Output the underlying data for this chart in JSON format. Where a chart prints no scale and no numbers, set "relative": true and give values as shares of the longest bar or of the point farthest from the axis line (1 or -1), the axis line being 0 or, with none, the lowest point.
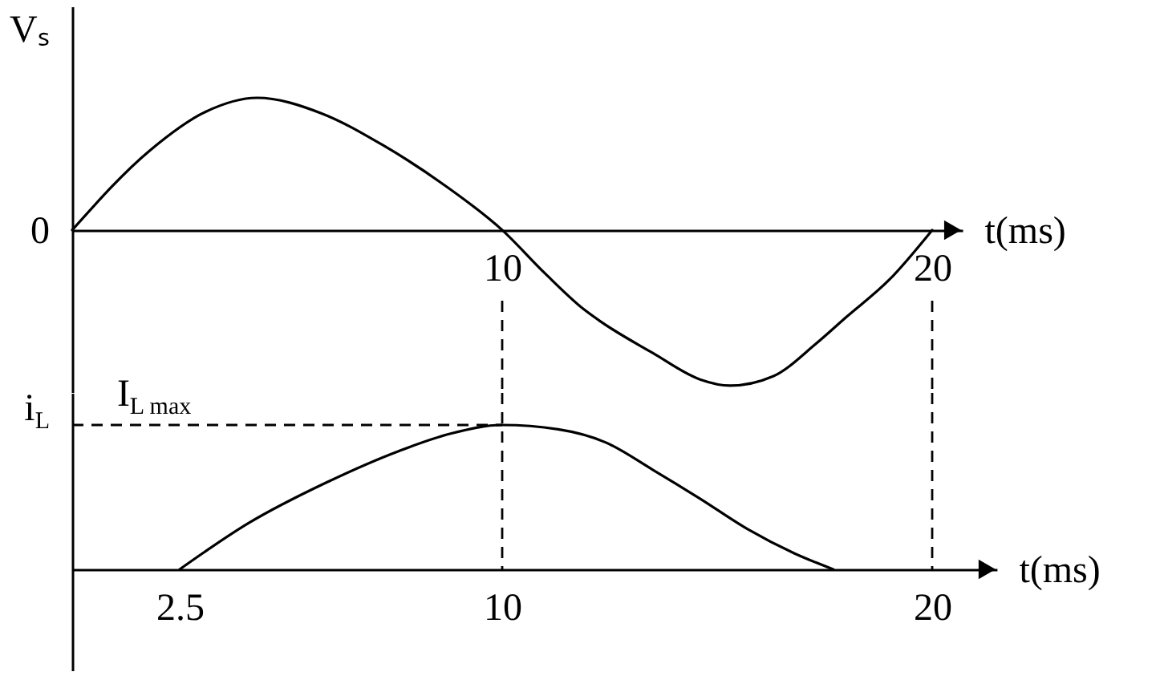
{
  "chart_data": [
    {
      "type": "line",
      "xlabel": "t(ms)",
      "ylabel": "Vₛ",
      "relative": true,
      "xlim": [
        0,
        20.7
      ],
      "xticks": [
        10,
        20
      ],
      "x": [
        0,
        1.8,
        3.1,
        4.3,
        5.8,
        7.2,
        8.6,
        10,
        11,
        11.9,
        12.3,
        13.5,
        14.6,
        15.3,
        16.3,
        17.3,
        18,
        19,
        20
      ],
      "series": [
        {
          "color": "#000000",
          "values": [
            0,
            0.51,
            0.76,
            0.85,
            0.75,
            0.55,
            0.3,
            0,
            -0.28,
            -0.51,
            -0.59,
            -0.79,
            -0.96,
            -1,
            -0.94,
            -0.73,
            -0.56,
            -0.32,
            0
          ]
        }
      ],
      "ref_lines": [
        {
          "axis": "x",
          "value": 10,
          "line_style": "dashed"
        },
        {
          "axis": "x",
          "value": 20,
          "line_style": "dashed"
        }
      ],
      "annotations": [
        {
          "text": "0",
          "x": 0,
          "y": 0
        }
      ]
    },
    {
      "type": "line",
      "xlabel": "t(ms)",
      "ylabel": "i$_{L}$",
      "relative": true,
      "xlim": [
        0,
        21.5
      ],
      "xticks": [
        2.5,
        10,
        20
      ],
      "x": [
        2.5,
        4.1,
        5.9,
        7.6,
        8.8,
        10,
        11.3,
        12.4,
        13.5,
        14.6,
        15.7,
        16.8,
        17.7
      ],
      "series": [
        {
          "color": "#000000",
          "values": [
            0,
            0.32,
            0.6,
            0.82,
            0.94,
            1,
            0.97,
            0.88,
            0.69,
            0.49,
            0.28,
            0.11,
            0
          ]
        }
      ],
      "ref_lines": [
        {
          "axis": "y",
          "value": 1,
          "label": "I$_{L max}$",
          "line_style": "dashed"
        },
        {
          "axis": "x",
          "value": 10,
          "line_style": "dashed"
        },
        {
          "axis": "x",
          "value": 20,
          "line_style": "dashed"
        }
      ]
    }
  ]
}
